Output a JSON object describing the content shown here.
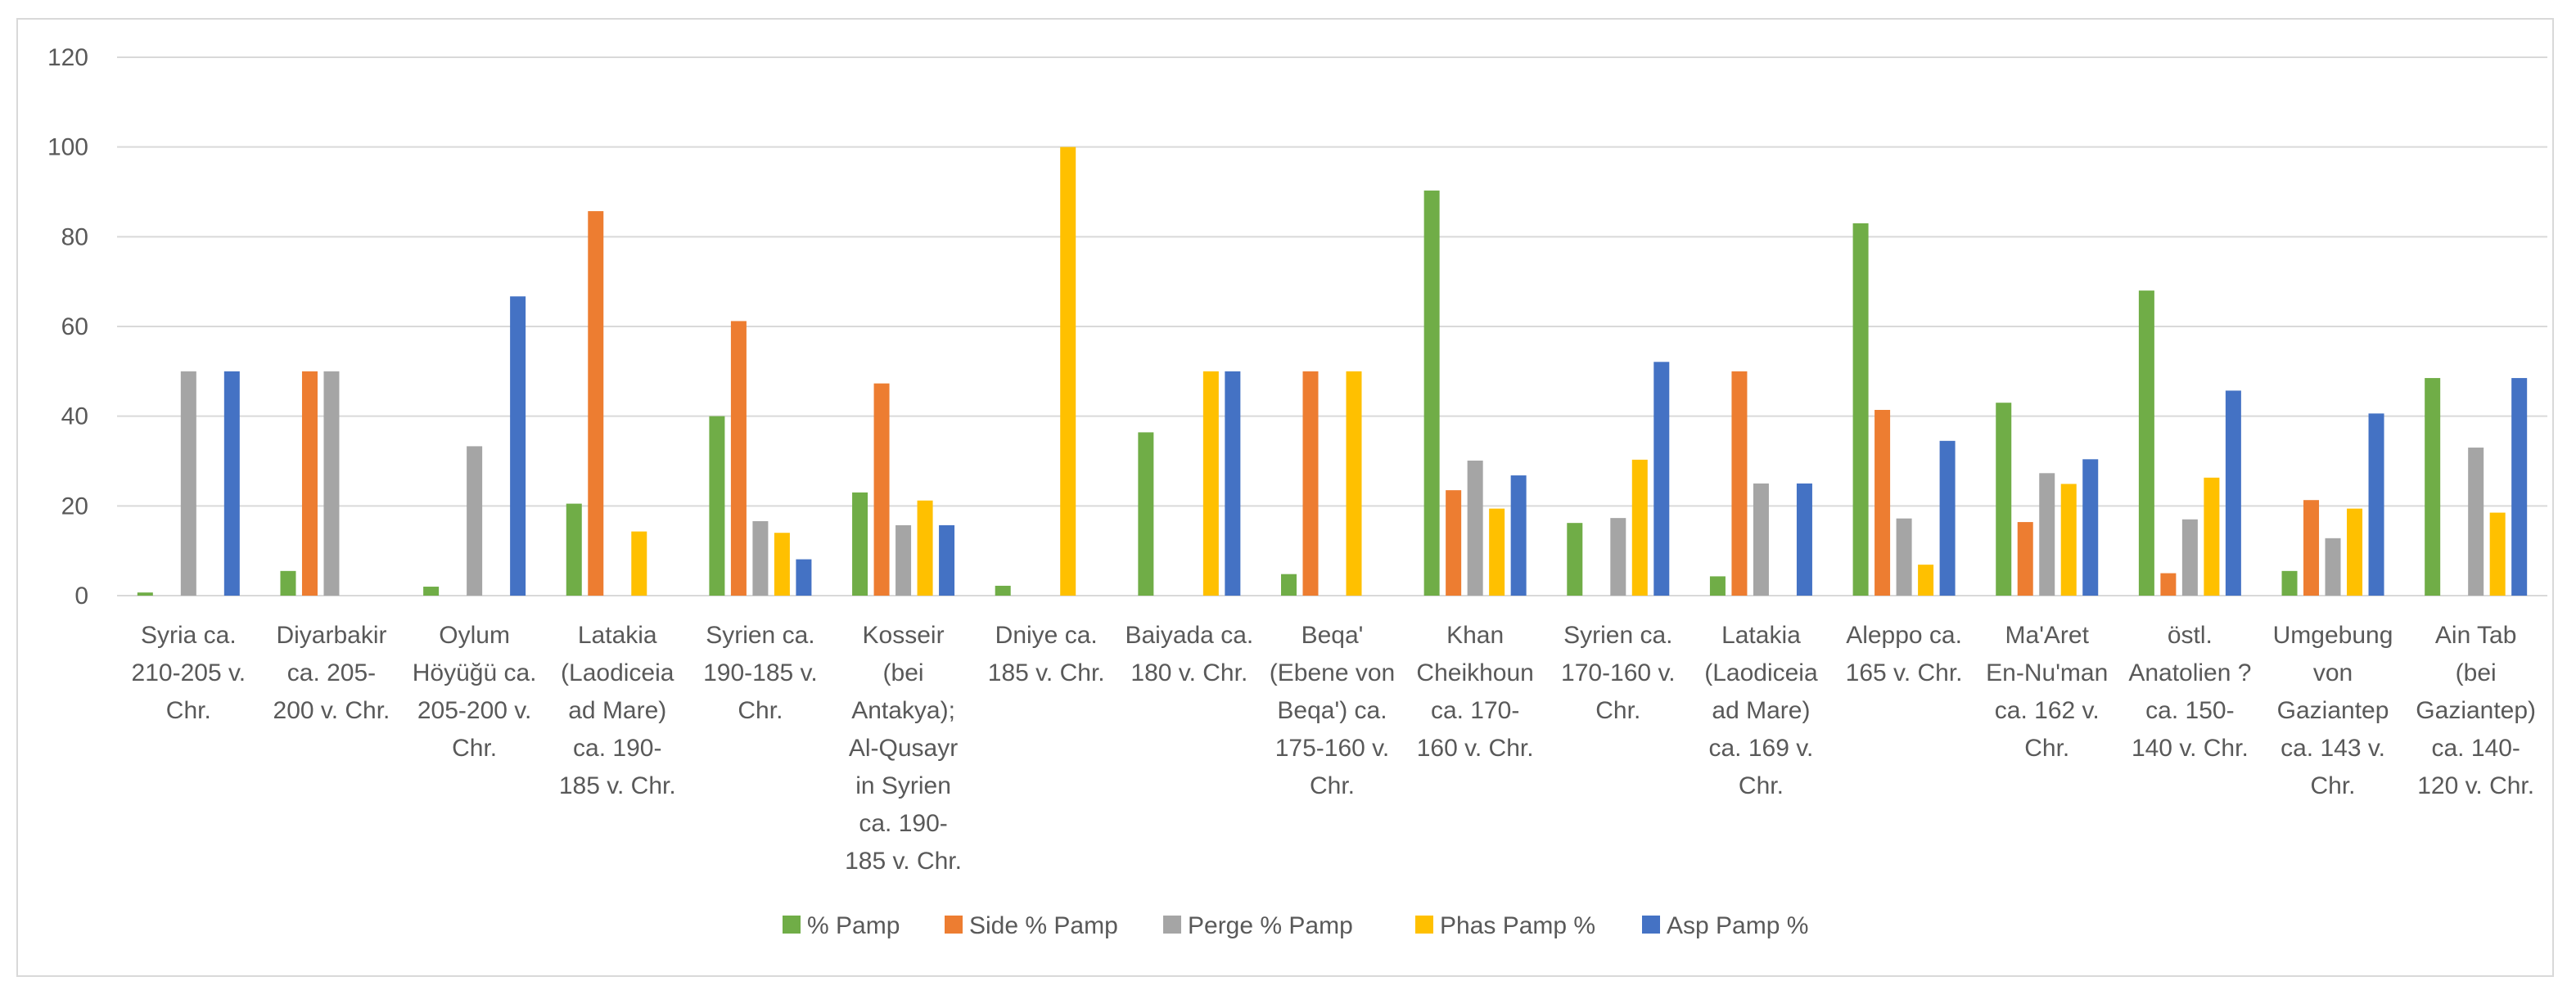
{
  "chart_data": {
    "type": "bar",
    "ylim": [
      0,
      120
    ],
    "yticks": [
      0,
      20,
      40,
      60,
      80,
      100,
      120
    ],
    "grid": true,
    "legend_position": "bottom",
    "categories": [
      [
        "Syria ca.",
        "210-205 v.",
        "Chr."
      ],
      [
        "Diyarbakir",
        "ca. 205-",
        "200 v. Chr."
      ],
      [
        "Oylum",
        "Höyüğü ca.",
        "205-200 v.",
        "Chr."
      ],
      [
        "Latakia",
        "(Laodiceia",
        "ad Mare)",
        "ca. 190-",
        "185 v. Chr."
      ],
      [
        "Syrien ca.",
        "190-185 v.",
        "Chr."
      ],
      [
        "Kosseir",
        "(bei",
        "Antakya);",
        "Al-Qusayr",
        "in Syrien",
        "ca. 190-",
        "185 v. Chr."
      ],
      [
        "Dniye ca.",
        "185 v. Chr."
      ],
      [
        "Baiyada ca.",
        "180 v. Chr."
      ],
      [
        "Beqa'",
        "(Ebene von",
        "Beqa') ca.",
        "175-160 v.",
        "Chr."
      ],
      [
        "Khan",
        "Cheikhoun",
        "ca. 170-",
        "160 v. Chr."
      ],
      [
        "Syrien ca.",
        "170-160 v.",
        "Chr."
      ],
      [
        "Latakia",
        "(Laodiceia",
        "ad Mare)",
        "ca. 169 v.",
        "Chr."
      ],
      [
        "Aleppo ca.",
        "165 v. Chr."
      ],
      [
        "Ma'Aret",
        "En-Nu'man",
        "ca. 162 v.",
        "Chr."
      ],
      [
        "östl.",
        "Anatolien ?",
        "ca. 150-",
        "140 v. Chr."
      ],
      [
        "Umgebung",
        "von",
        "Gaziantep",
        "ca. 143 v.",
        "Chr."
      ],
      [
        "Ain Tab",
        "(bei",
        "Gaziantep)",
        "ca. 140-",
        "120 v. Chr."
      ]
    ],
    "series": [
      {
        "name": "% Pamp",
        "color": "#70ad47",
        "values": [
          0.7,
          5.5,
          2,
          20.5,
          40,
          23,
          2.2,
          36.4,
          4.8,
          90.3,
          16.2,
          4.3,
          83,
          43,
          68,
          5.5,
          48.5
        ]
      },
      {
        "name": "Side % Pamp",
        "color": "#ed7d31",
        "values": [
          0,
          50,
          0,
          85.7,
          61.2,
          47.3,
          0,
          0,
          50,
          23.5,
          0,
          50,
          41.4,
          16.4,
          5,
          21.3,
          0
        ]
      },
      {
        "name": "Perge % Pamp",
        "color": "#a5a5a5",
        "values": [
          50,
          50,
          33.3,
          0,
          16.6,
          15.7,
          0,
          0,
          0,
          30.1,
          17.3,
          25,
          17.2,
          27.3,
          17,
          12.8,
          33
        ]
      },
      {
        "name": "Phas Pamp %",
        "color": "#ffc000",
        "values": [
          0,
          0,
          0,
          14.3,
          14,
          21.2,
          100,
          50,
          50,
          19.4,
          30.3,
          0,
          6.9,
          24.9,
          26.3,
          19.4,
          18.5
        ]
      },
      {
        "name": "Asp Pamp %",
        "color": "#4472c4",
        "values": [
          50,
          0,
          66.7,
          0,
          8.1,
          15.7,
          0,
          50,
          0,
          26.8,
          52.1,
          25,
          34.5,
          30.4,
          45.7,
          40.6,
          48.5
        ]
      }
    ]
  }
}
